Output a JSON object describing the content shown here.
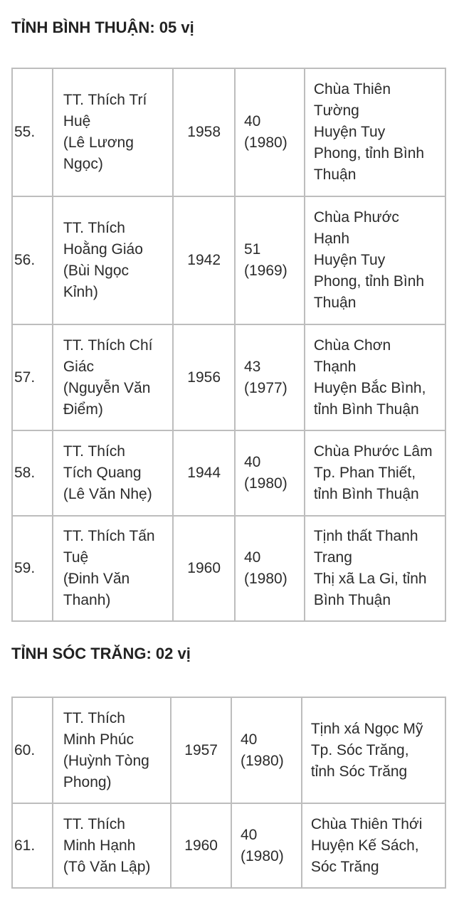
{
  "sections": [
    {
      "title": "TỈNH BÌNH THUẬN: 05 vị",
      "rows": [
        {
          "no": "55.",
          "name": "TT. Thích Trí\nHuệ\n(Lê Lương\nNgọc)",
          "year": "1958",
          "age": "40\n(1980)",
          "place": "Chùa Thiên\nTường\nHuyện Tuy\nPhong, tỉnh Bình\nThuận"
        },
        {
          "no": "56.",
          "name": "TT. Thích\nHoằng Giáo\n(Bùi Ngọc\nKỉnh)",
          "year": "1942",
          "age": "51\n(1969)",
          "place": "Chùa Phước\nHạnh\nHuyện Tuy\nPhong, tỉnh Bình\nThuận"
        },
        {
          "no": "57.",
          "name": "TT. Thích Chí\nGiác\n(Nguyễn Văn\nĐiểm)",
          "year": "1956",
          "age": "43\n(1977)",
          "place": "Chùa Chơn\nThạnh\nHuyện Bắc Bình,\ntỉnh Bình Thuận"
        },
        {
          "no": "58.",
          "name": "TT.  Thích\nTích Quang\n(Lê Văn Nhẹ)",
          "year": "1944",
          "age": "40\n(1980)",
          "place": "Chùa Phước Lâm\nTp. Phan Thiết,\ntỉnh Bình Thuận"
        },
        {
          "no": "59.",
          "name": "TT. Thích Tấn\nTuệ\n(Đinh Văn\nThanh)",
          "year": "1960",
          "age": "40\n(1980)",
          "place": "Tịnh thất Thanh\nTrang\nThị xã La Gi, tỉnh\nBình Thuận"
        }
      ]
    },
    {
      "title": "TỈNH SÓC TRĂNG: 02 vị",
      "rows": [
        {
          "no": "60.",
          "name": "TT. Thích\nMinh Phúc\n(Huỳnh Tòng\nPhong)",
          "year": "1957",
          "age": "40\n(1980)",
          "place": "Tịnh xá Ngọc Mỹ\nTp. Sóc Trăng,\ntỉnh Sóc Trăng"
        },
        {
          "no": "61.",
          "name": "TT. Thích\nMinh Hạnh\n(Tô Văn Lập)",
          "year": "1960",
          "age": "40\n(1980)",
          "place": "Chùa Thiên Thới\nHuyện Kế Sách,\nSóc Trăng"
        }
      ]
    }
  ]
}
